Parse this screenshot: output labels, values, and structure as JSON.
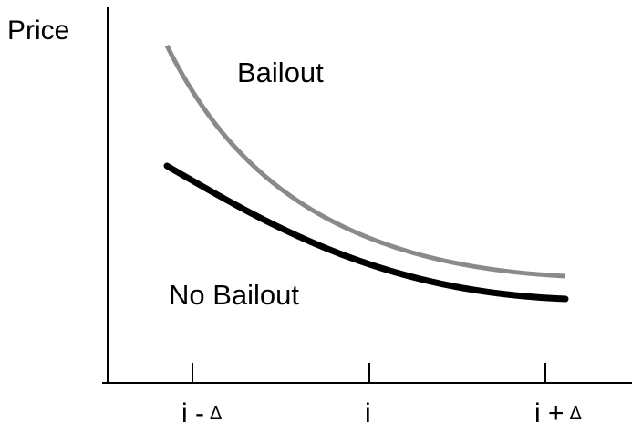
{
  "axes": {
    "y_label": "Price",
    "x_ticks": [
      {
        "text": "i -",
        "symbol": "Δ"
      },
      {
        "text": "i",
        "symbol": null
      },
      {
        "text": "i +",
        "symbol": "Δ"
      }
    ]
  },
  "curves": [
    {
      "label": "Bailout"
    },
    {
      "label": "No Bailout"
    }
  ]
}
